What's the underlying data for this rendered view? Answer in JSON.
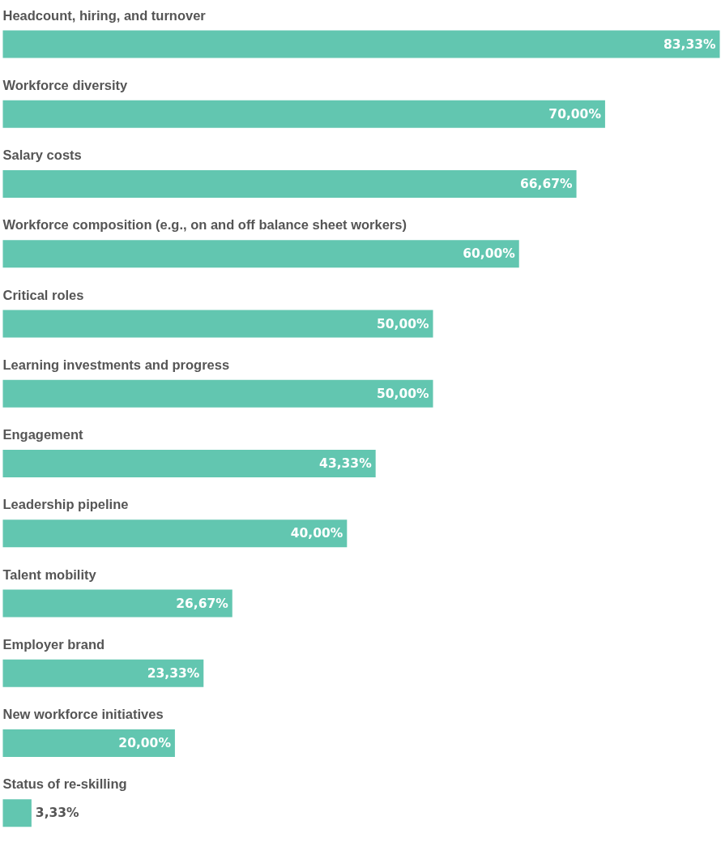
{
  "chart_data": {
    "type": "bar",
    "orientation": "horizontal",
    "color": "#62c6b0",
    "categories": [
      "Headcount, hiring, and turnover",
      "Workforce diversity",
      "Salary costs",
      "Workforce composition (e.g., on and off balance sheet workers)",
      "Critical roles",
      "Learning investments and progress",
      "Engagement",
      "Leadership pipeline",
      "Talent mobility",
      "Employer brand",
      "New workforce initiatives",
      "Status of re-skilling"
    ],
    "values": [
      83.33,
      70.0,
      66.67,
      60.0,
      50.0,
      50.0,
      43.33,
      40.0,
      26.67,
      23.33,
      20.0,
      3.33
    ],
    "value_labels": [
      "83,33%",
      "70,00%",
      "66,67%",
      "60,00%",
      "50,00%",
      "50,00%",
      "43,33%",
      "40,00%",
      "26,67%",
      "23,33%",
      "20,00%",
      "3,33%"
    ]
  }
}
